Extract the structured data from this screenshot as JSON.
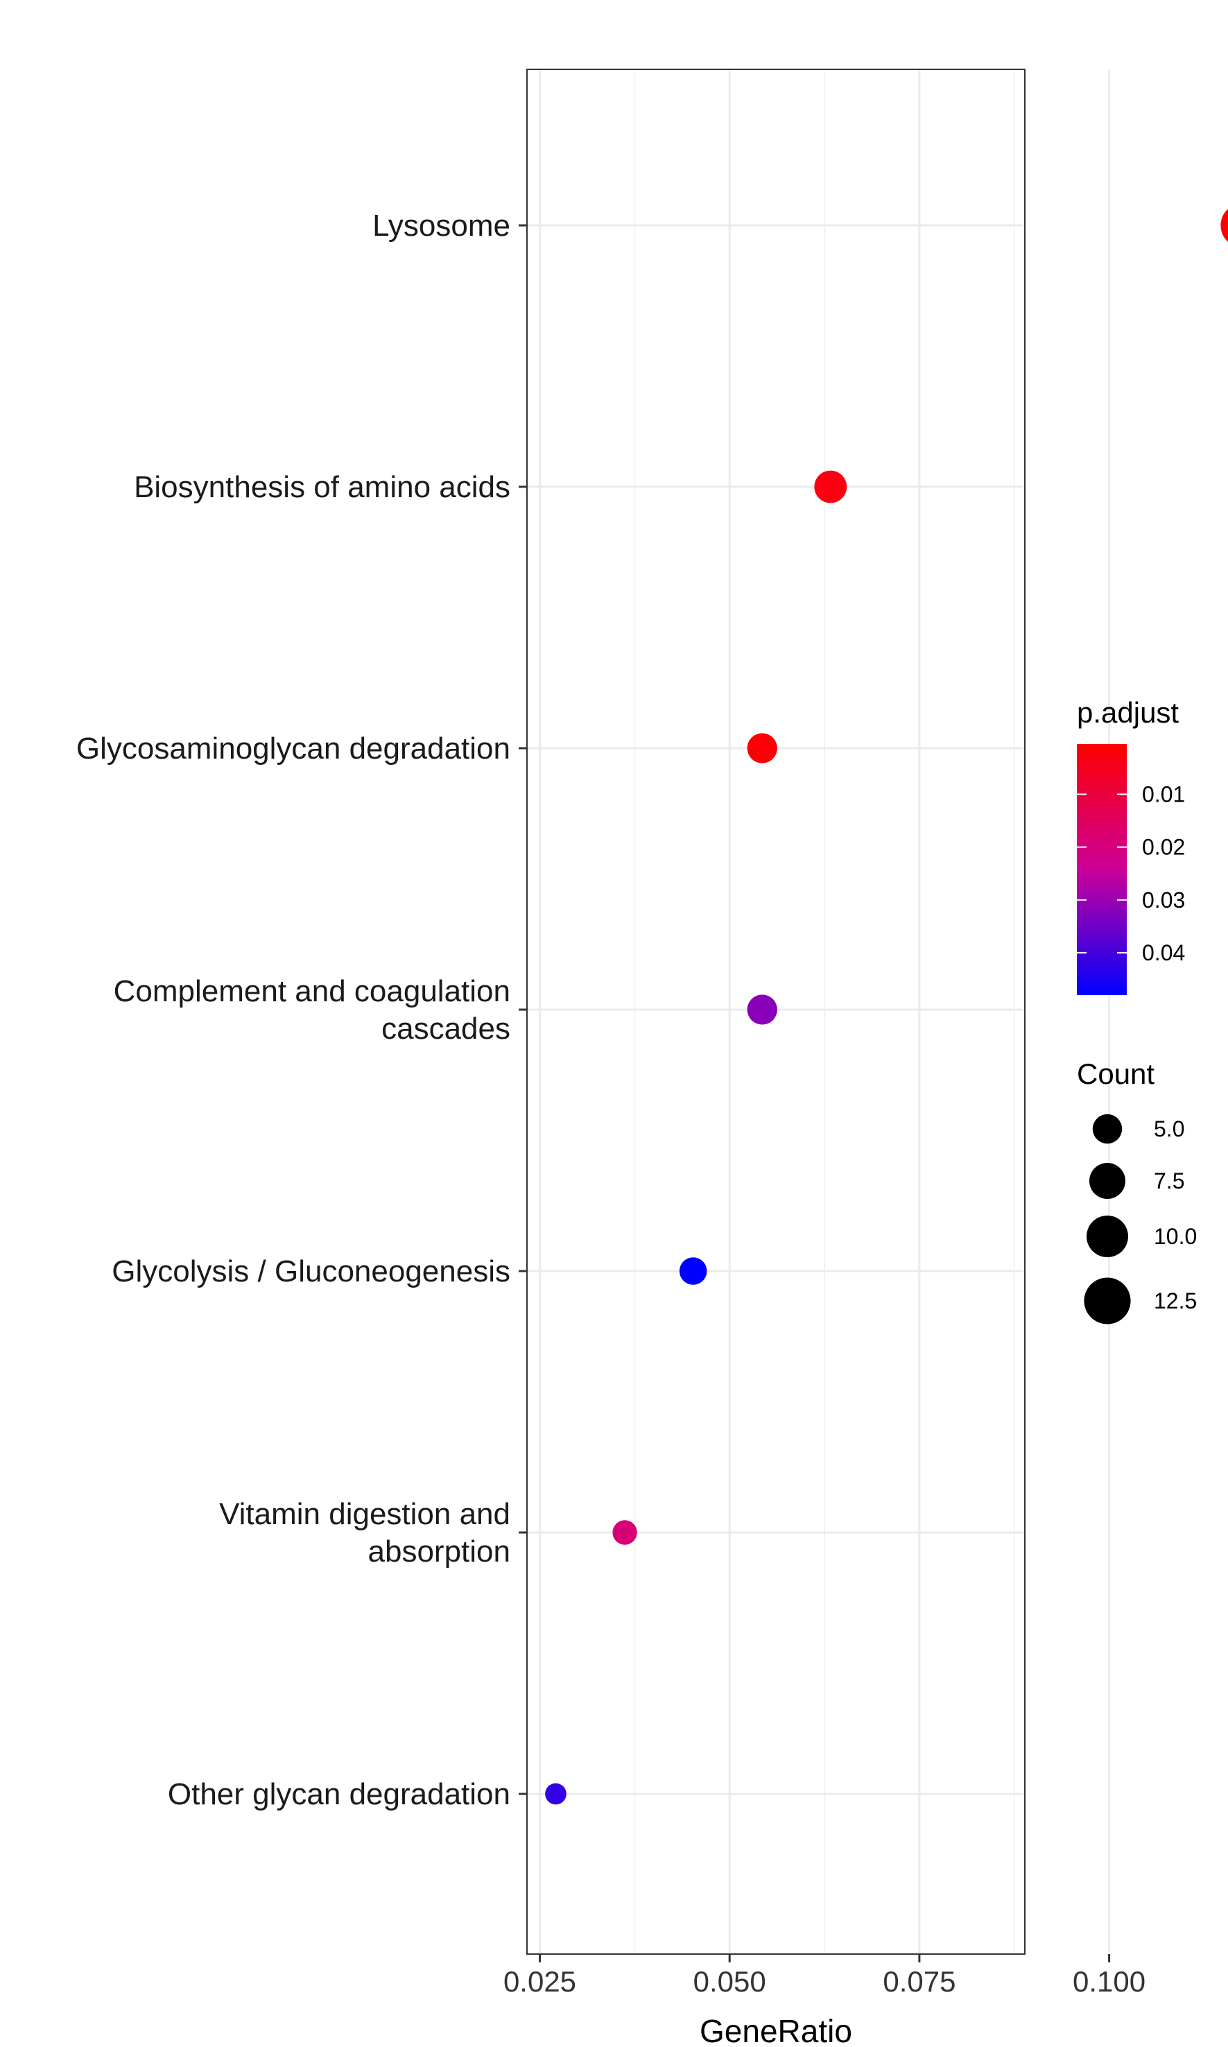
{
  "chart_data": {
    "type": "scatter",
    "xlabel": "GeneRatio",
    "ylabel": "",
    "xlim": [
      0.0225,
      0.12
    ],
    "x_ticks": [
      "0.025",
      "0.050",
      "0.075",
      "0.100"
    ],
    "x_tick_values": [
      0.025,
      0.05,
      0.075,
      0.1
    ],
    "grid": true,
    "legend_position": "right",
    "categories": [
      [
        "Lysosome"
      ],
      [
        "Biosynthesis of amino acids"
      ],
      [
        "Glycosaminoglycan degradation"
      ],
      [
        "Complement and coagulation",
        "cascades"
      ],
      [
        "Glycolysis / Gluconeogenesis"
      ],
      [
        "Vitamin digestion and",
        "absorption"
      ],
      [
        "Other glycan degradation"
      ]
    ],
    "points": [
      {
        "x": 0.1176,
        "count": 13,
        "p_adjust": 0.0005
      },
      {
        "x": 0.0633,
        "count": 7,
        "p_adjust": 0.003
      },
      {
        "x": 0.0543,
        "count": 6,
        "p_adjust": 0.0015
      },
      {
        "x": 0.0543,
        "count": 6,
        "p_adjust": 0.032
      },
      {
        "x": 0.0452,
        "count": 5,
        "p_adjust": 0.048
      },
      {
        "x": 0.0362,
        "count": 4,
        "p_adjust": 0.019
      },
      {
        "x": 0.0271,
        "count": 3,
        "p_adjust": 0.042
      }
    ],
    "color_legend": {
      "title": "p.adjust",
      "ticks": [
        "0.01",
        "0.02",
        "0.03",
        "0.04"
      ],
      "tick_values": [
        0.01,
        0.02,
        0.03,
        0.04
      ],
      "range": [
        0.0005,
        0.048
      ],
      "low_color": "#ff0000",
      "high_color": "#0000ff"
    },
    "size_legend": {
      "title": "Count",
      "labels": [
        "5.0",
        "7.5",
        "10.0",
        "12.5"
      ],
      "values": [
        5,
        7.5,
        10,
        12.5
      ]
    }
  }
}
